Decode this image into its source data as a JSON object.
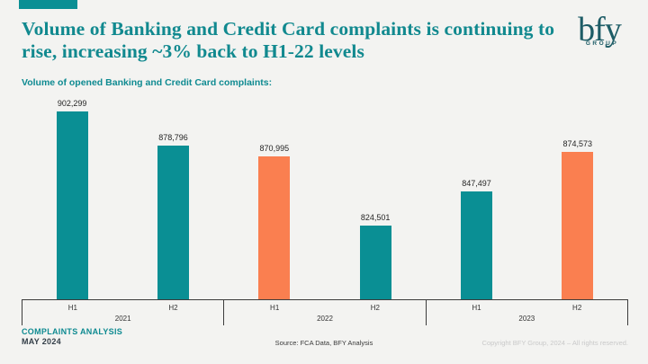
{
  "slide": {
    "title": "Volume of Banking and Credit Card complaints is continuing to rise, increasing ~3% back to H1-22 levels",
    "subtitle": "Volume of opened Banking and Credit Card complaints:",
    "logo": {
      "word": "bfy",
      "sub": "GROUP"
    },
    "footer": {
      "analysis": "COMPLAINTS ANALYSIS",
      "date": "MAY 2024",
      "source": "Source: FCA Data, BFY Analysis",
      "copyright": "Copyright BFY Group, 2024 – All rights reserved."
    }
  },
  "chart_data": {
    "type": "bar",
    "title": "Volume of opened Banking and Credit Card complaints",
    "xlabel": "",
    "ylabel": "",
    "grid": false,
    "legend": false,
    "y_min": 775000,
    "y_max": 910000,
    "year_groups": [
      "2021",
      "2022",
      "2023"
    ],
    "bars": [
      {
        "year": "2021",
        "half": "H1",
        "value": 902299,
        "label": "902,299",
        "color": "teal"
      },
      {
        "year": "2021",
        "half": "H2",
        "value": 878796,
        "label": "878,796",
        "color": "teal"
      },
      {
        "year": "2022",
        "half": "H1",
        "value": 870995,
        "label": "870,995",
        "color": "orange"
      },
      {
        "year": "2022",
        "half": "H2",
        "value": 824501,
        "label": "824,501",
        "color": "teal"
      },
      {
        "year": "2023",
        "half": "H1",
        "value": 847497,
        "label": "847,497",
        "color": "teal"
      },
      {
        "year": "2023",
        "half": "H2",
        "value": 874573,
        "label": "874,573",
        "color": "orange"
      }
    ],
    "colors": {
      "teal": "#0a8f94",
      "orange": "#fa7f50"
    }
  }
}
